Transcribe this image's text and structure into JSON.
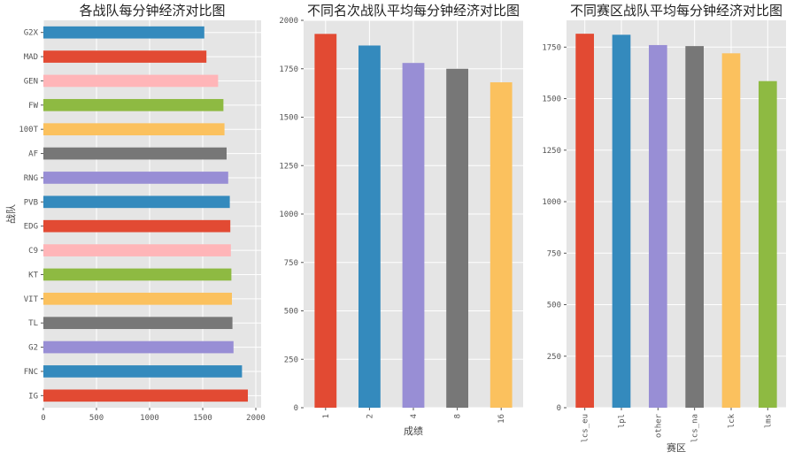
{
  "chart_data": [
    {
      "type": "bar",
      "orientation": "horizontal",
      "title": "各战队每分钟经济对比图",
      "xlabel": "",
      "ylabel": "战队",
      "xlim": [
        0,
        2050
      ],
      "xticks": [
        0,
        500,
        1000,
        1500,
        2000
      ],
      "categories": [
        "G2X",
        "MAD",
        "GEN",
        "FW",
        "100T",
        "AF",
        "RNG",
        "PVB",
        "EDG",
        "C9",
        "KT",
        "VIT",
        "TL",
        "G2",
        "FNC",
        "IG"
      ],
      "values": [
        1515,
        1535,
        1645,
        1695,
        1705,
        1725,
        1740,
        1755,
        1760,
        1765,
        1770,
        1775,
        1780,
        1790,
        1870,
        1925
      ],
      "grid": true
    },
    {
      "type": "bar",
      "title": "不同名次战队平均每分钟经济对比图",
      "xlabel": "成绩",
      "ylabel": "",
      "ylim": [
        0,
        2000
      ],
      "yticks": [
        0,
        250,
        500,
        750,
        1000,
        1250,
        1500,
        1750,
        2000
      ],
      "categories": [
        "1",
        "2",
        "4",
        "8",
        "16"
      ],
      "values": [
        1930,
        1870,
        1780,
        1750,
        1680
      ],
      "grid": true
    },
    {
      "type": "bar",
      "title": "不同赛区战队平均每分钟经济对比图",
      "xlabel": "赛区",
      "ylabel": "",
      "ylim": [
        0,
        1880
      ],
      "yticks": [
        0,
        250,
        500,
        750,
        1000,
        1250,
        1500,
        1750
      ],
      "categories": [
        "lcs_eu",
        "lpl",
        "other",
        "lcs_na",
        "lck",
        "lms"
      ],
      "values": [
        1815,
        1810,
        1760,
        1755,
        1720,
        1585
      ],
      "grid": true
    }
  ],
  "colors": [
    "#E24A33",
    "#348ABD",
    "#988ED5",
    "#777777",
    "#FBC15E",
    "#8EBA42",
    "#FFB5B8"
  ],
  "style": {
    "background": "#E5E5E5",
    "gridline": "#FFFFFF"
  }
}
